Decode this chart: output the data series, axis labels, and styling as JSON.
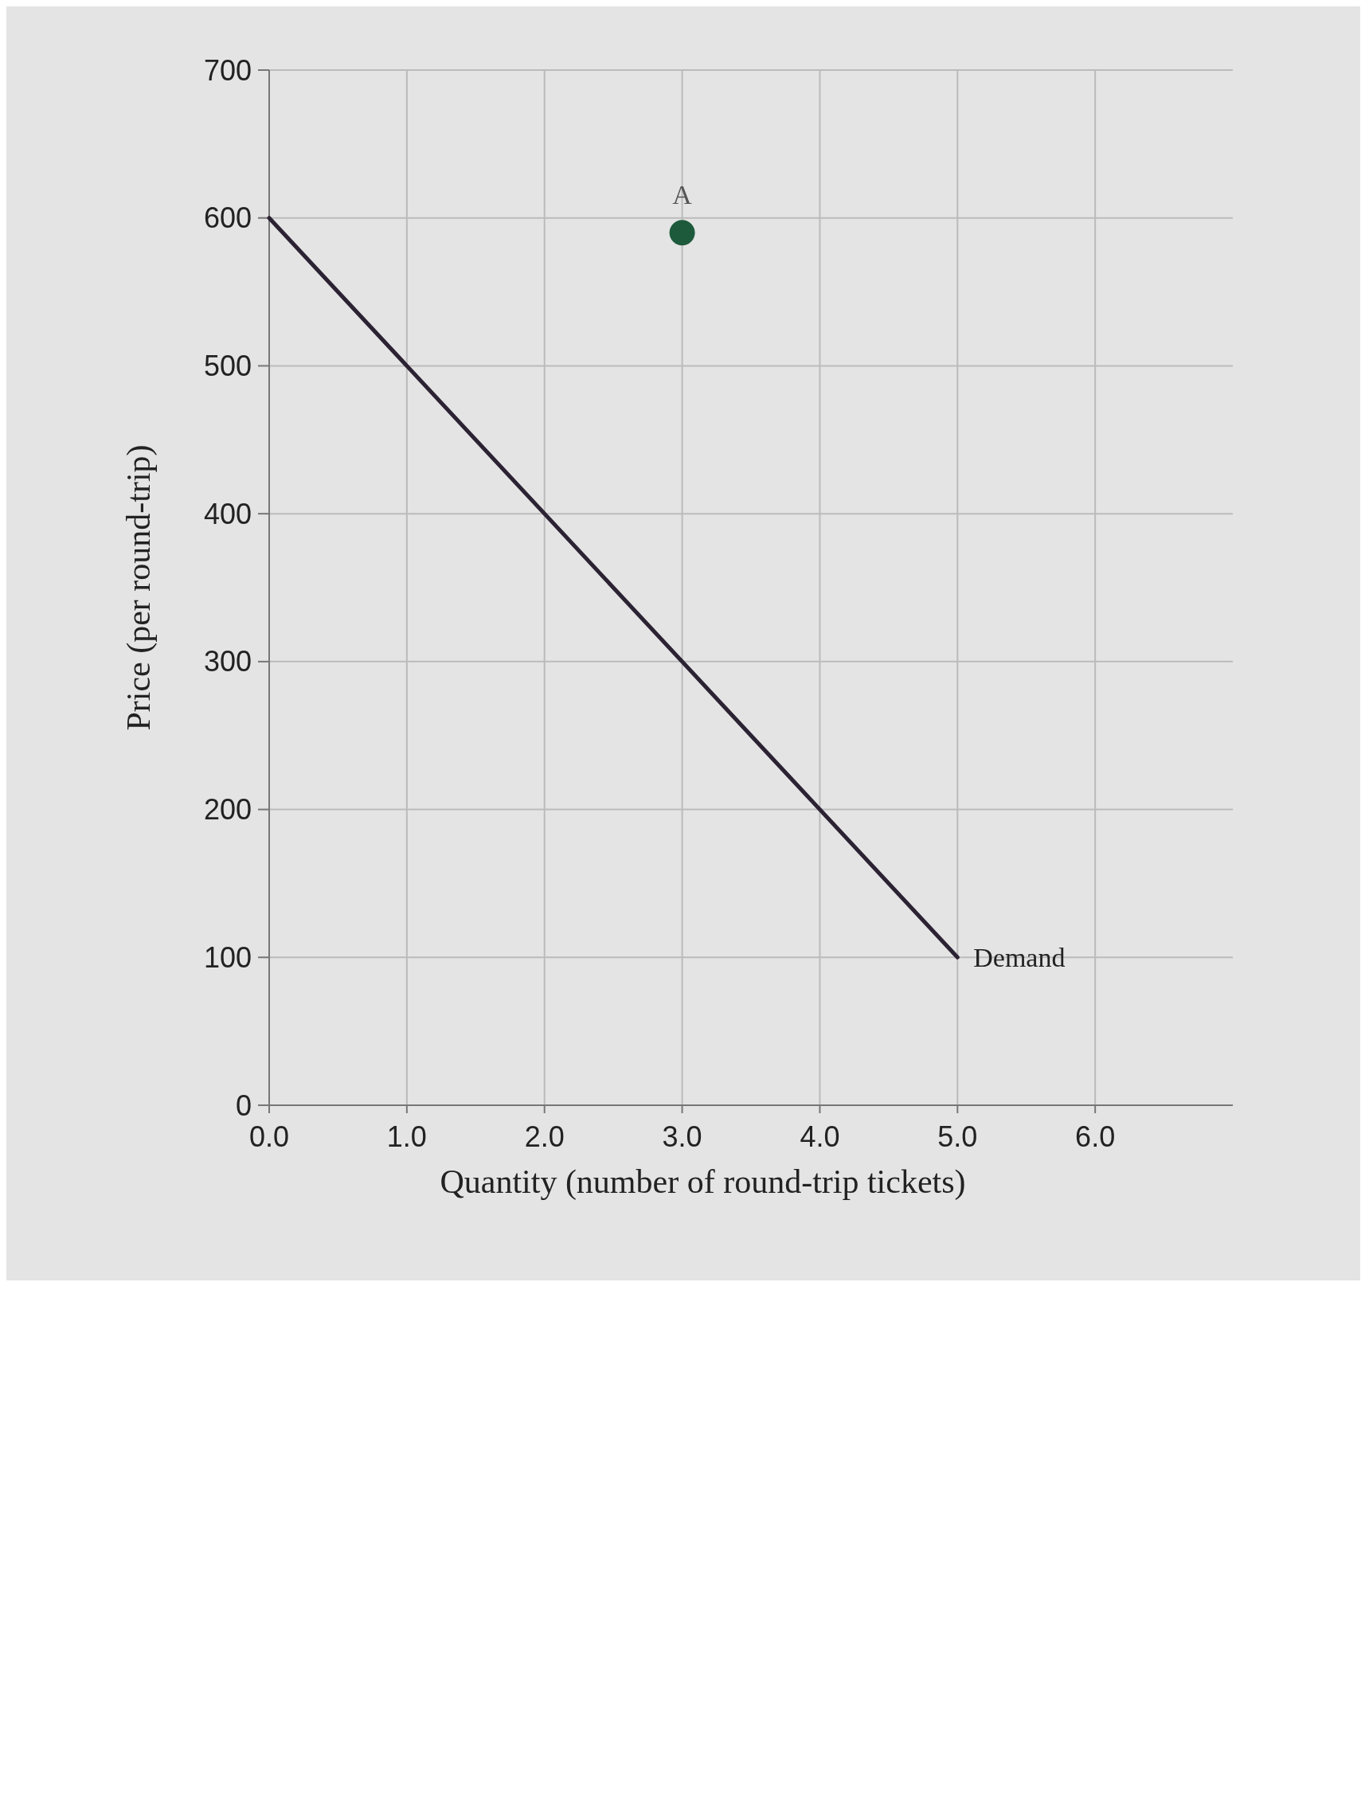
{
  "chart_data": {
    "type": "line",
    "xlabel": "Quantity (number of round-trip tickets)",
    "ylabel": "Price (per round-trip)",
    "xlim": [
      0,
      7
    ],
    "ylim": [
      0,
      700
    ],
    "xticks": [
      {
        "value": 0,
        "label": "0.0"
      },
      {
        "value": 1,
        "label": "1.0"
      },
      {
        "value": 2,
        "label": "2.0"
      },
      {
        "value": 3,
        "label": "3.0"
      },
      {
        "value": 4,
        "label": "4.0"
      },
      {
        "value": 5,
        "label": "5.0"
      },
      {
        "value": 6,
        "label": "6.0"
      }
    ],
    "yticks": [
      0,
      100,
      200,
      300,
      400,
      500,
      600,
      700
    ],
    "grid": true,
    "series": [
      {
        "name": "Demand",
        "type": "line",
        "color": "#2b2233",
        "x": [
          0,
          5
        ],
        "values": [
          600,
          100
        ]
      },
      {
        "type": "scatter",
        "color": "#1d5a3c",
        "x": [
          3
        ],
        "values": [
          590
        ]
      }
    ],
    "annotations": [
      {
        "text": "A",
        "x": 3,
        "y": 590
      }
    ]
  }
}
